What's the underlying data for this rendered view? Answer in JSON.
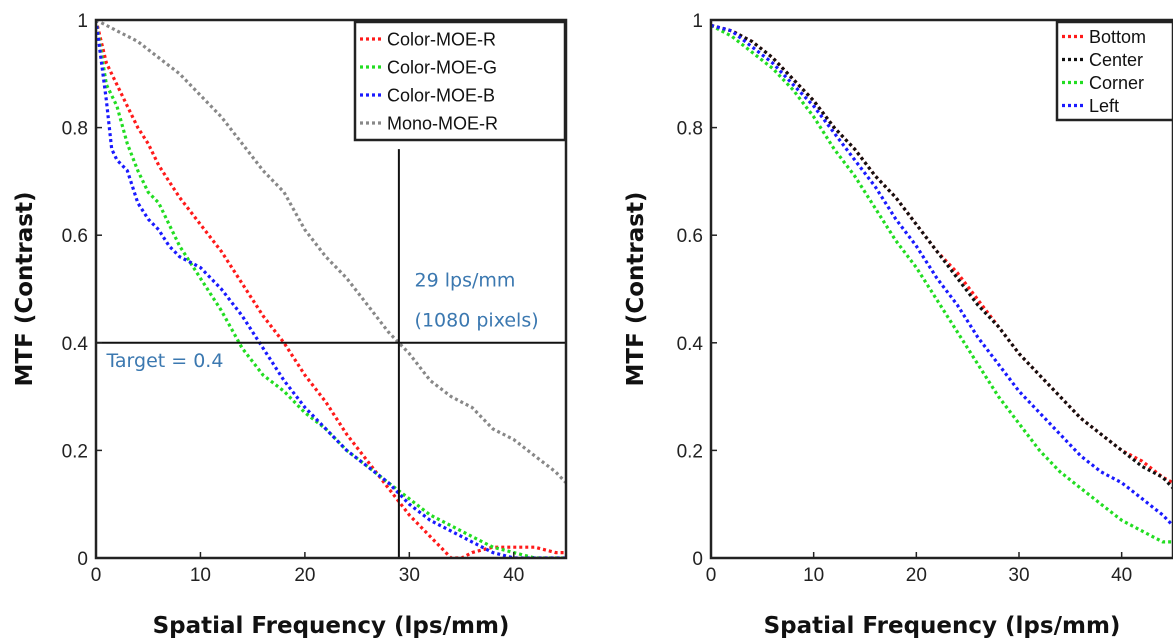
{
  "chart_data": [
    {
      "type": "line",
      "xlabel": "Spatial Frequency (lps/mm)",
      "ylabel": "MTF (Contrast)",
      "xlim": [
        0,
        45
      ],
      "ylim": [
        0,
        1
      ],
      "xticks": [
        0,
        10,
        20,
        30,
        40
      ],
      "yticks": [
        0,
        0.2,
        0.4,
        0.6,
        0.8,
        1
      ],
      "tick_labels_x": [
        "0",
        "10",
        "20",
        "30",
        "40"
      ],
      "tick_labels_y": [
        "0",
        "0.2",
        "0.4",
        "0.6",
        "0.8",
        "1"
      ],
      "grid": false,
      "legend_position": "top-right",
      "line_style": "dotted",
      "series": [
        {
          "name": "Color-MOE-R",
          "color": "#ff1a1a",
          "x": [
            0,
            1,
            2,
            3,
            4,
            5,
            6,
            7,
            8,
            10,
            12,
            14,
            16,
            18,
            20,
            22,
            24,
            26,
            28,
            30,
            32,
            33,
            34,
            35,
            36,
            38,
            40,
            42,
            44,
            45
          ],
          "y": [
            1.0,
            0.92,
            0.88,
            0.84,
            0.8,
            0.77,
            0.73,
            0.7,
            0.67,
            0.62,
            0.57,
            0.51,
            0.45,
            0.4,
            0.34,
            0.29,
            0.23,
            0.18,
            0.13,
            0.08,
            0.04,
            0.02,
            0.0,
            0.0,
            0.01,
            0.02,
            0.02,
            0.02,
            0.01,
            0.01
          ]
        },
        {
          "name": "Color-MOE-G",
          "color": "#22dd22",
          "x": [
            0,
            1,
            2,
            3,
            4,
            5,
            6,
            7,
            8,
            9,
            10,
            12,
            14,
            16,
            18,
            20,
            22,
            24,
            26,
            28,
            30,
            32,
            34,
            36,
            38,
            40,
            42,
            44,
            45
          ],
          "y": [
            1.0,
            0.88,
            0.84,
            0.77,
            0.72,
            0.68,
            0.66,
            0.62,
            0.58,
            0.55,
            0.52,
            0.46,
            0.39,
            0.34,
            0.31,
            0.27,
            0.24,
            0.2,
            0.17,
            0.14,
            0.11,
            0.08,
            0.06,
            0.04,
            0.02,
            0.01,
            0.0,
            0.0,
            0.0
          ]
        },
        {
          "name": "Color-MOE-B",
          "color": "#1a1aff",
          "x": [
            0,
            1,
            1.5,
            2,
            3,
            4,
            5,
            6,
            7,
            8,
            10,
            12,
            14,
            16,
            18,
            20,
            22,
            24,
            26,
            28,
            30,
            32,
            34,
            36,
            38,
            40,
            42,
            44,
            45
          ],
          "y": [
            1.0,
            0.85,
            0.76,
            0.74,
            0.72,
            0.66,
            0.63,
            0.61,
            0.58,
            0.56,
            0.54,
            0.5,
            0.45,
            0.39,
            0.33,
            0.28,
            0.24,
            0.2,
            0.17,
            0.14,
            0.1,
            0.07,
            0.05,
            0.03,
            0.01,
            0.0,
            0.0,
            0.0,
            0.0
          ]
        },
        {
          "name": "Mono-MOE-R",
          "color": "#888888",
          "x": [
            0,
            2,
            4,
            6,
            8,
            10,
            12,
            14,
            16,
            18,
            20,
            22,
            24,
            26,
            28,
            30,
            32,
            34,
            36,
            38,
            40,
            42,
            44,
            45
          ],
          "y": [
            1.0,
            0.98,
            0.96,
            0.93,
            0.9,
            0.86,
            0.82,
            0.77,
            0.72,
            0.68,
            0.61,
            0.56,
            0.52,
            0.47,
            0.42,
            0.38,
            0.33,
            0.3,
            0.28,
            0.24,
            0.22,
            0.19,
            0.16,
            0.14
          ]
        }
      ],
      "annotations": [
        {
          "text": "Target = 0.4",
          "x": 1,
          "y": 0.355
        },
        {
          "text": "29 lps/mm",
          "x": 30.5,
          "y": 0.505
        },
        {
          "text": "(1080 pixels)",
          "x": 30.5,
          "y": 0.43
        }
      ],
      "reference_lines": {
        "horizontal_y": 0.4,
        "vertical_x": 29
      }
    },
    {
      "type": "line",
      "xlabel": "Spatial Frequency (lps/mm)",
      "ylabel": "MTF (Contrast)",
      "xlim": [
        0,
        45
      ],
      "ylim": [
        0,
        1
      ],
      "xticks": [
        0,
        10,
        20,
        30,
        40
      ],
      "yticks": [
        0,
        0.2,
        0.4,
        0.6,
        0.8,
        1
      ],
      "tick_labels_x": [
        "0",
        "10",
        "20",
        "30",
        "40"
      ],
      "tick_labels_y": [
        "0",
        "0.2",
        "0.4",
        "0.6",
        "0.8",
        "1"
      ],
      "grid": false,
      "legend_position": "top-right",
      "line_style": "dotted",
      "series": [
        {
          "name": "Bottom",
          "color": "#ff1a1a",
          "x": [
            0,
            2,
            4,
            6,
            8,
            10,
            12,
            14,
            16,
            18,
            20,
            22,
            24,
            26,
            28,
            30,
            32,
            34,
            36,
            38,
            40,
            42,
            44,
            45
          ],
          "y": [
            0.99,
            0.98,
            0.96,
            0.93,
            0.89,
            0.85,
            0.8,
            0.76,
            0.71,
            0.67,
            0.62,
            0.57,
            0.53,
            0.48,
            0.43,
            0.38,
            0.34,
            0.3,
            0.26,
            0.23,
            0.2,
            0.18,
            0.15,
            0.14
          ]
        },
        {
          "name": "Center",
          "color": "#111111",
          "x": [
            0,
            2,
            4,
            6,
            8,
            10,
            12,
            14,
            16,
            18,
            20,
            22,
            24,
            26,
            28,
            30,
            32,
            34,
            36,
            38,
            40,
            42,
            44,
            45
          ],
          "y": [
            0.99,
            0.98,
            0.96,
            0.93,
            0.89,
            0.85,
            0.8,
            0.76,
            0.71,
            0.67,
            0.62,
            0.57,
            0.52,
            0.47,
            0.43,
            0.38,
            0.34,
            0.3,
            0.26,
            0.23,
            0.2,
            0.17,
            0.15,
            0.13
          ]
        },
        {
          "name": "Corner",
          "color": "#22dd22",
          "x": [
            0,
            2,
            4,
            6,
            8,
            10,
            12,
            14,
            16,
            18,
            20,
            22,
            24,
            26,
            28,
            30,
            32,
            34,
            36,
            38,
            40,
            42,
            44,
            45
          ],
          "y": [
            0.99,
            0.97,
            0.94,
            0.91,
            0.87,
            0.82,
            0.76,
            0.71,
            0.65,
            0.59,
            0.54,
            0.48,
            0.42,
            0.36,
            0.3,
            0.25,
            0.2,
            0.16,
            0.13,
            0.1,
            0.07,
            0.05,
            0.03,
            0.03
          ]
        },
        {
          "name": "Left",
          "color": "#1a1aff",
          "x": [
            0,
            2,
            4,
            6,
            8,
            10,
            12,
            14,
            16,
            18,
            20,
            22,
            24,
            26,
            28,
            30,
            32,
            34,
            36,
            38,
            40,
            42,
            44,
            45
          ],
          "y": [
            0.99,
            0.98,
            0.95,
            0.92,
            0.88,
            0.84,
            0.79,
            0.74,
            0.69,
            0.63,
            0.58,
            0.52,
            0.47,
            0.41,
            0.36,
            0.31,
            0.27,
            0.23,
            0.19,
            0.16,
            0.14,
            0.11,
            0.08,
            0.06
          ]
        }
      ]
    }
  ]
}
